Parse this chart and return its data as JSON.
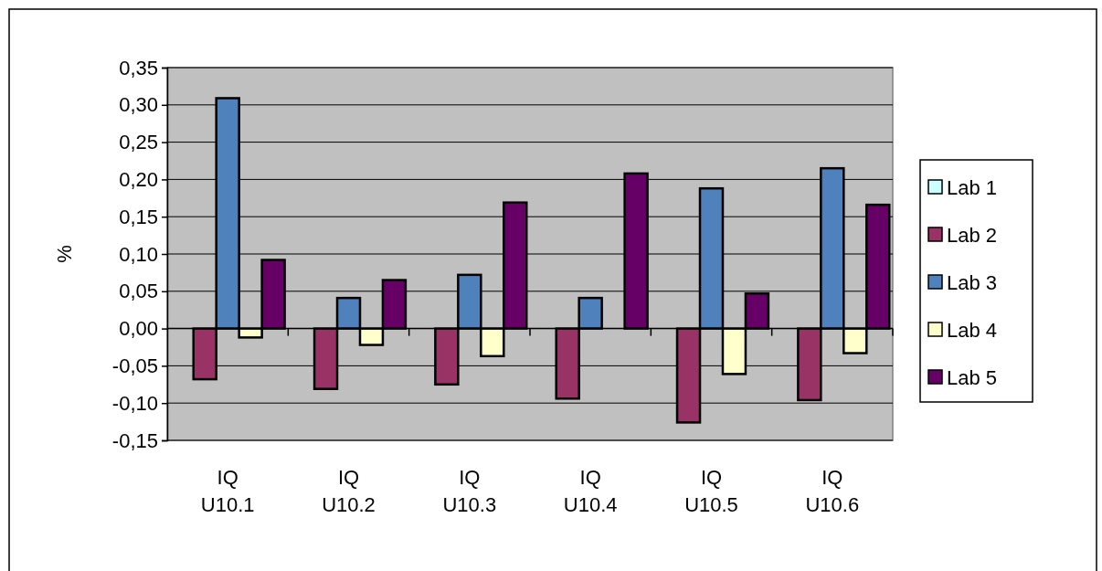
{
  "chart_data": {
    "type": "bar",
    "ylabel": "%",
    "categories": [
      "IQ U10.1",
      "IQ U10.2",
      "IQ U10.3",
      "IQ U10.4",
      "IQ U10.5",
      "IQ U10.6"
    ],
    "series": [
      {
        "name": "Lab 1",
        "color": "#ccffff",
        "values": [
          0,
          0,
          0,
          0,
          0,
          0
        ]
      },
      {
        "name": "Lab 2",
        "color": "#993366",
        "values": [
          -0.068,
          -0.081,
          -0.075,
          -0.094,
          -0.126,
          -0.096
        ]
      },
      {
        "name": "Lab 3",
        "color": "#4f81bd",
        "values": [
          0.309,
          0.041,
          0.072,
          0.041,
          0.188,
          0.215
        ]
      },
      {
        "name": "Lab 4",
        "color": "#ffffcc",
        "values": [
          -0.012,
          -0.022,
          -0.037,
          0,
          -0.061,
          -0.033
        ]
      },
      {
        "name": "Lab 5",
        "color": "#660066",
        "values": [
          0.092,
          0.065,
          0.169,
          0.208,
          0.047,
          0.166
        ]
      }
    ],
    "ylim": [
      -0.15,
      0.35
    ],
    "yticks": [
      {
        "value": -0.15,
        "label": "-0,15"
      },
      {
        "value": -0.1,
        "label": "-0,10"
      },
      {
        "value": -0.05,
        "label": "-0,05"
      },
      {
        "value": 0,
        "label": "0,00"
      },
      {
        "value": 0.05,
        "label": "0,05"
      },
      {
        "value": 0.1,
        "label": "0,10"
      },
      {
        "value": 0.15,
        "label": "0,15"
      },
      {
        "value": 0.2,
        "label": "0,20"
      },
      {
        "value": 0.25,
        "label": "0,25"
      },
      {
        "value": 0.3,
        "label": "0,30"
      },
      {
        "value": 0.35,
        "label": "0,35"
      }
    ],
    "grid": "y",
    "legend": "right"
  }
}
